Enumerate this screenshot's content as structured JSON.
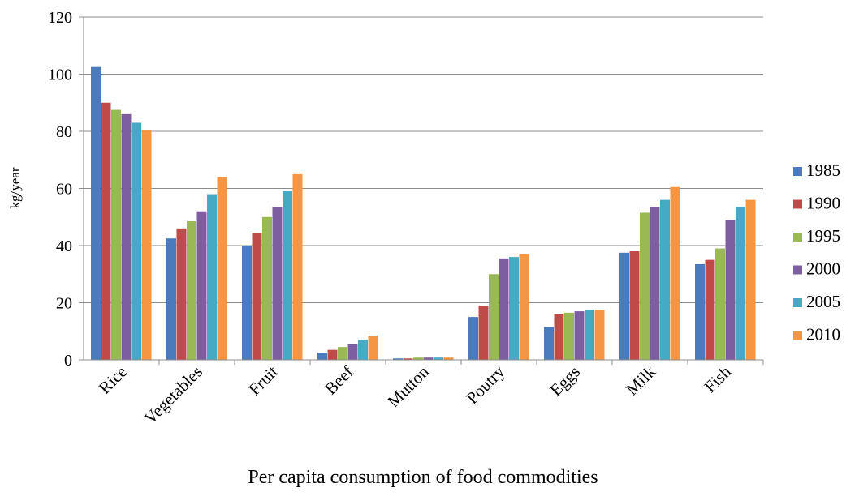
{
  "chart_data": {
    "type": "bar",
    "xlabel": "Per capita consumption of food commodities",
    "ylabel": "kg/year",
    "ylim": [
      0,
      120
    ],
    "yticks": [
      0,
      20,
      40,
      60,
      80,
      100,
      120
    ],
    "grid": true,
    "legend_position": "right",
    "categories": [
      "Rice",
      "Vegetables",
      "Fruit",
      "Beef",
      "Mutton",
      "Poutry",
      "Eggs",
      "Milk",
      "Fish"
    ],
    "series": [
      {
        "name": "1985",
        "color": "#4A7BBD",
        "values": [
          102.5,
          42.5,
          40.0,
          2.5,
          0.5,
          15.0,
          11.5,
          37.5,
          33.5
        ]
      },
      {
        "name": "1990",
        "color": "#BE4B48",
        "values": [
          90.0,
          46.0,
          44.5,
          3.5,
          0.5,
          19.0,
          16.0,
          38.0,
          35.0
        ]
      },
      {
        "name": "1995",
        "color": "#98B954",
        "values": [
          87.5,
          48.5,
          50.0,
          4.5,
          0.8,
          30.0,
          16.5,
          51.5,
          39.0
        ]
      },
      {
        "name": "2000",
        "color": "#7D5FA0",
        "values": [
          86.0,
          52.0,
          53.5,
          5.5,
          0.8,
          35.5,
          17.0,
          53.5,
          49.0
        ]
      },
      {
        "name": "2005",
        "color": "#46AAC5",
        "values": [
          83.0,
          58.0,
          59.0,
          7.0,
          0.8,
          36.0,
          17.5,
          56.0,
          53.5
        ]
      },
      {
        "name": "2010",
        "color": "#F59644",
        "values": [
          80.5,
          64.0,
          65.0,
          8.5,
          0.8,
          37.0,
          17.5,
          60.5,
          56.0
        ]
      }
    ]
  }
}
